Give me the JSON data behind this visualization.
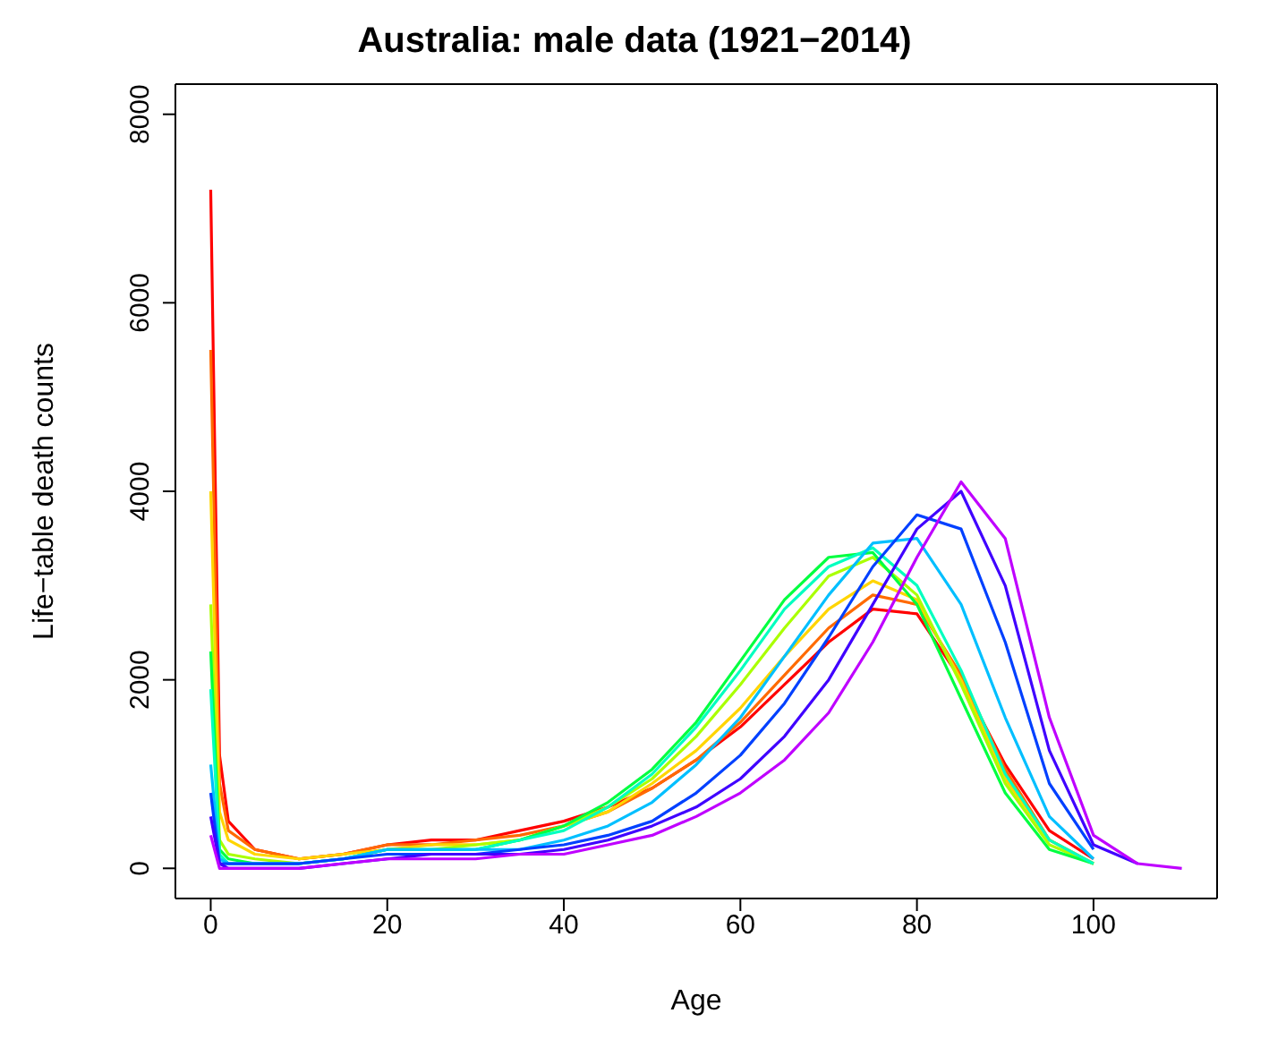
{
  "chart_data": {
    "type": "line",
    "title": "Australia: male data (1921−2014)",
    "xlabel": "Age",
    "ylabel": "Life−table death counts",
    "x": [
      0,
      1,
      2,
      5,
      10,
      15,
      20,
      25,
      30,
      35,
      40,
      45,
      50,
      55,
      60,
      65,
      70,
      75,
      80,
      85,
      90,
      95,
      100,
      105,
      110
    ],
    "xlim": [
      -4,
      114
    ],
    "xticks": [
      0,
      20,
      40,
      60,
      80,
      100
    ],
    "ylim": [
      -320,
      8320
    ],
    "yticks": [
      0,
      2000,
      4000,
      6000,
      8000
    ],
    "line_style": "solid",
    "series": [
      {
        "color": "#ff0000",
        "values": [
          7200,
          1200,
          500,
          200,
          100,
          150,
          250,
          300,
          300,
          400,
          500,
          650,
          850,
          1150,
          1500,
          1950,
          2400,
          2750,
          2700,
          2000,
          1100,
          400,
          100,
          null,
          null
        ]
      },
      {
        "color": "#ff6a00",
        "values": [
          5500,
          900,
          400,
          200,
          100,
          150,
          250,
          250,
          300,
          350,
          450,
          600,
          850,
          1150,
          1550,
          2050,
          2550,
          2900,
          2800,
          2050,
          1050,
          300,
          50,
          null,
          null
        ]
      },
      {
        "color": "#ffd500",
        "values": [
          4000,
          600,
          300,
          150,
          100,
          150,
          200,
          250,
          250,
          300,
          450,
          600,
          900,
          1250,
          1700,
          2250,
          2750,
          3050,
          2850,
          2000,
          950,
          300,
          50,
          null,
          null
        ]
      },
      {
        "color": "#aaff00",
        "values": [
          2800,
          300,
          150,
          100,
          50,
          100,
          200,
          200,
          250,
          300,
          450,
          650,
          950,
          1400,
          1950,
          2550,
          3100,
          3300,
          2900,
          1950,
          900,
          250,
          50,
          null,
          null
        ]
      },
      {
        "color": "#00ff40",
        "values": [
          2300,
          200,
          100,
          50,
          50,
          100,
          200,
          200,
          200,
          300,
          450,
          700,
          1050,
          1550,
          2200,
          2850,
          3300,
          3350,
          2800,
          1800,
          800,
          200,
          50,
          null,
          null
        ]
      },
      {
        "color": "#00ffbf",
        "values": [
          1900,
          150,
          50,
          50,
          50,
          100,
          200,
          200,
          200,
          300,
          400,
          650,
          1000,
          1500,
          2100,
          2750,
          3200,
          3400,
          3000,
          2100,
          1000,
          300,
          50,
          null,
          null
        ]
      },
      {
        "color": "#00bfff",
        "values": [
          1100,
          100,
          50,
          50,
          50,
          100,
          200,
          200,
          200,
          200,
          300,
          450,
          700,
          1100,
          1600,
          2250,
          2900,
          3450,
          3500,
          2800,
          1600,
          550,
          100,
          null,
          null
        ]
      },
      {
        "color": "#0040ff",
        "values": [
          800,
          50,
          50,
          50,
          50,
          100,
          150,
          150,
          150,
          200,
          250,
          350,
          500,
          800,
          1200,
          1750,
          2450,
          3200,
          3750,
          3600,
          2400,
          900,
          200,
          null,
          null
        ]
      },
      {
        "color": "#4000ff",
        "values": [
          550,
          50,
          0,
          0,
          0,
          50,
          100,
          150,
          150,
          150,
          200,
          300,
          450,
          650,
          950,
          1400,
          2000,
          2800,
          3600,
          4000,
          3000,
          1250,
          250,
          50,
          null
        ]
      },
      {
        "color": "#bf00ff",
        "values": [
          350,
          0,
          0,
          0,
          0,
          50,
          100,
          100,
          100,
          150,
          150,
          250,
          350,
          550,
          800,
          1150,
          1650,
          2400,
          3300,
          4100,
          3500,
          1600,
          350,
          50,
          0
        ]
      }
    ]
  }
}
